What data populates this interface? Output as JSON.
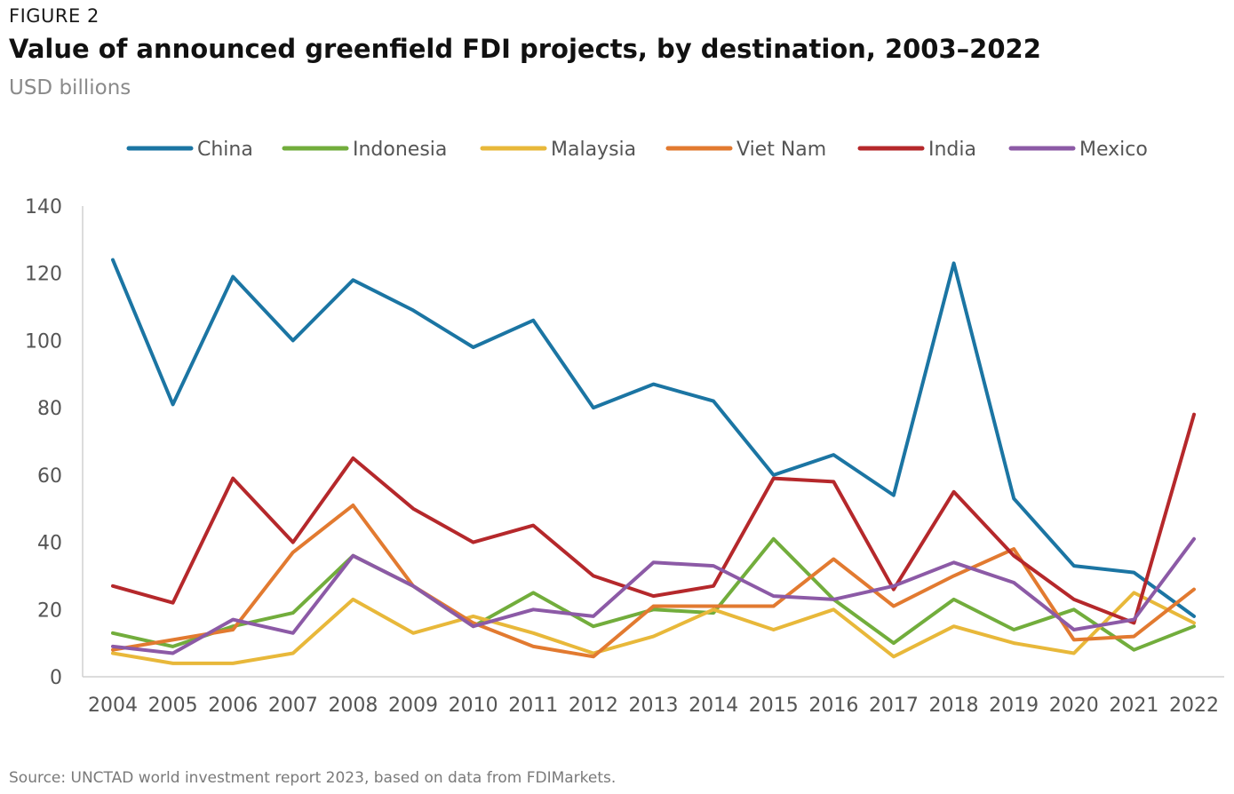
{
  "figure_label": "FIGURE 2",
  "title": "Value of announced greenfield FDI projects, by destination, 2003–2022",
  "subtitle": "USD billions",
  "source": "Source: UNCTAD world investment report 2023, based on data from FDIMarkets.",
  "chart_data": {
    "type": "line",
    "title": "Value of announced greenfield FDI projects, by destination, 2003–2022",
    "subtitle": "USD billions",
    "xlabel": "",
    "ylabel": "",
    "x": [
      "2004",
      "2005",
      "2006",
      "2007",
      "2008",
      "2009",
      "2010",
      "2011",
      "2012",
      "2013",
      "2014",
      "2015",
      "2016",
      "2017",
      "2018",
      "2019",
      "2020",
      "2021",
      "2022"
    ],
    "ylim": [
      0,
      140
    ],
    "yticks": [
      "0",
      "20",
      "40",
      "60",
      "80",
      "100",
      "120",
      "140"
    ],
    "grid": false,
    "legend_position": "top",
    "series": [
      {
        "name": "China",
        "color": "#1b75a3",
        "values": [
          124,
          81,
          119,
          100,
          118,
          109,
          98,
          106,
          80,
          87,
          82,
          60,
          66,
          54,
          123,
          53,
          33,
          31,
          18
        ]
      },
      {
        "name": "Indonesia",
        "color": "#72ad3c",
        "values": [
          13,
          9,
          15,
          19,
          36,
          27,
          15,
          25,
          15,
          20,
          19,
          41,
          23,
          10,
          23,
          14,
          20,
          8,
          15
        ]
      },
      {
        "name": "Malaysia",
        "color": "#e8b83a",
        "values": [
          7,
          4,
          4,
          7,
          23,
          13,
          18,
          13,
          7,
          12,
          20,
          14,
          20,
          6,
          15,
          10,
          7,
          25,
          16
        ]
      },
      {
        "name": "Viet Nam",
        "color": "#e27a30",
        "values": [
          8,
          11,
          14,
          37,
          51,
          27,
          16,
          9,
          6,
          21,
          21,
          21,
          35,
          21,
          30,
          38,
          11,
          12,
          26
        ]
      },
      {
        "name": "India",
        "color": "#b5282b",
        "values": [
          27,
          22,
          59,
          40,
          65,
          50,
          40,
          45,
          30,
          24,
          27,
          59,
          58,
          26,
          55,
          36,
          23,
          16,
          78
        ]
      },
      {
        "name": "Mexico",
        "color": "#8c5aa6",
        "values": [
          9,
          7,
          17,
          13,
          36,
          27,
          15,
          20,
          18,
          34,
          33,
          24,
          23,
          27,
          34,
          28,
          14,
          17,
          41
        ]
      }
    ]
  }
}
